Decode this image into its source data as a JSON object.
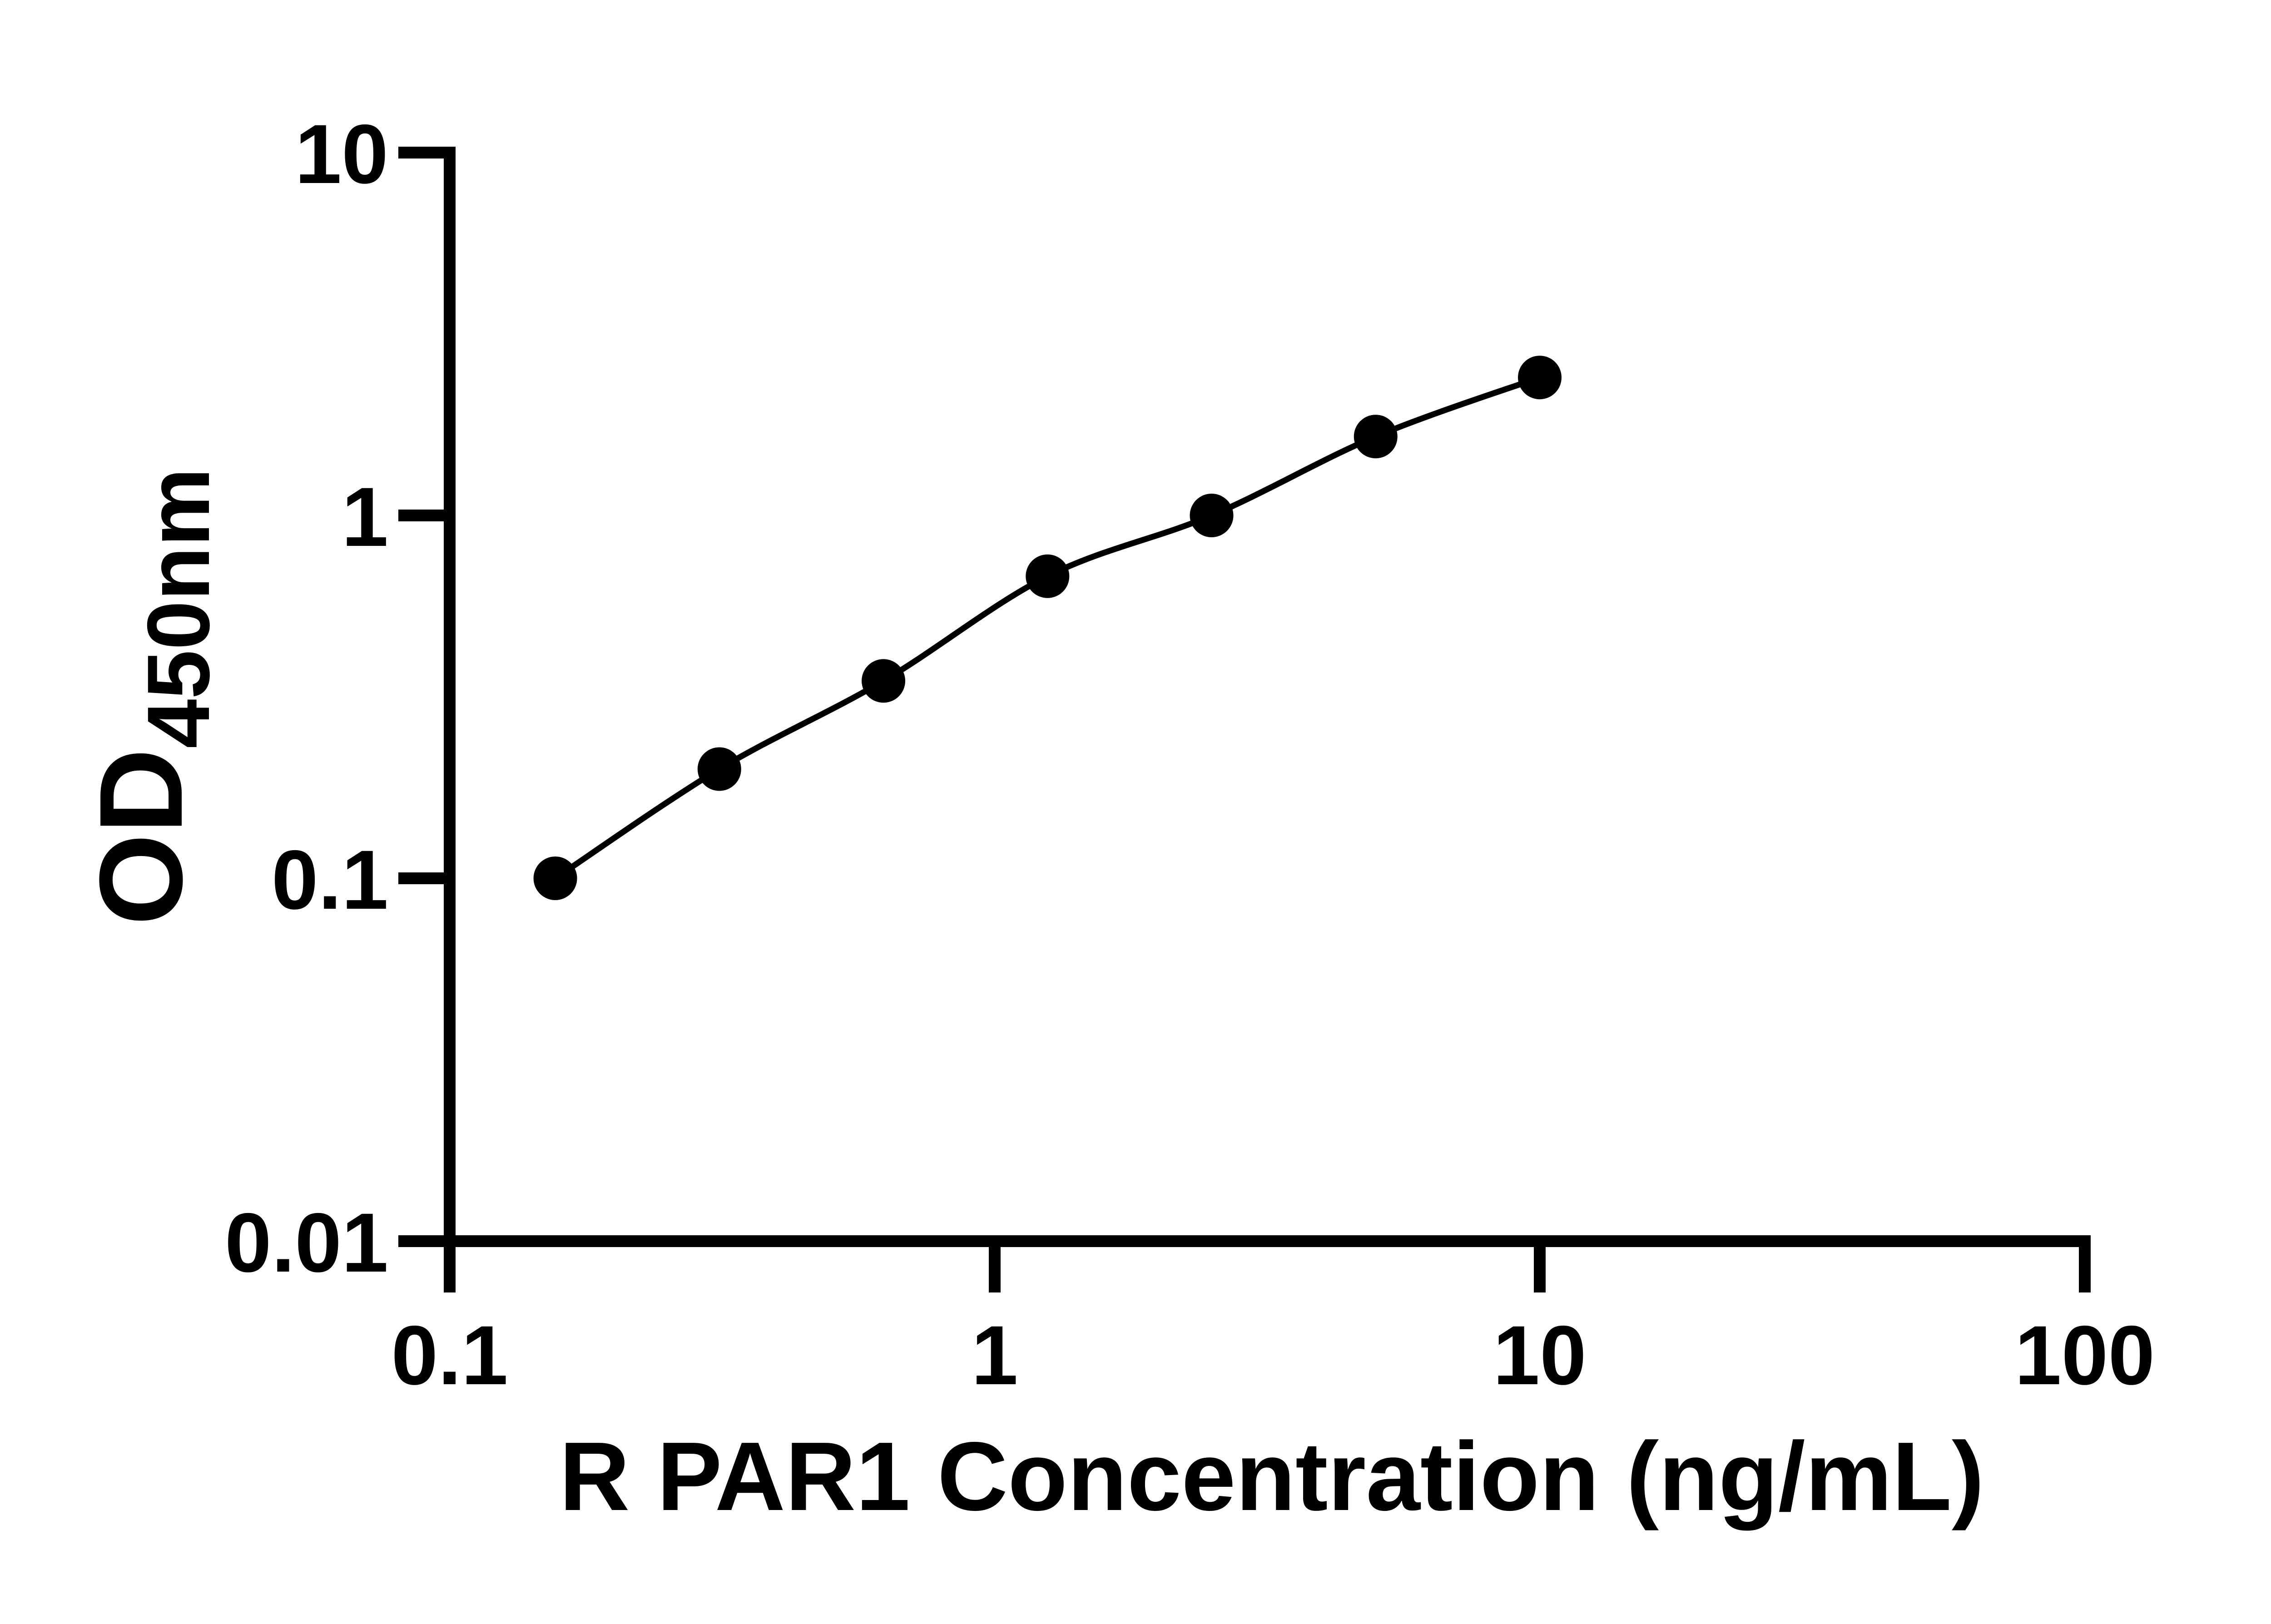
{
  "figure": {
    "background": "#ffffff",
    "ink": "#000000"
  },
  "chart_data": {
    "type": "scatter",
    "title": "",
    "xlabel": "R PAR1 Concentration (ng/mL)",
    "ylabel": "OD",
    "ylabel_subscript": "450nm",
    "x_scale": "log10",
    "y_scale": "log10",
    "xlim": [
      0.1,
      100
    ],
    "ylim": [
      0.01,
      10
    ],
    "x_ticks": [
      "0.1",
      "1",
      "10",
      "100"
    ],
    "y_ticks": [
      "10",
      "1",
      "0.1",
      "0.01"
    ],
    "grid": false,
    "legend": false,
    "marker": {
      "shape": "circle",
      "color": "#000000"
    },
    "line": {
      "color": "#000000",
      "smooth": true
    },
    "points": [
      {
        "x": 0.15625,
        "y": 0.1
      },
      {
        "x": 0.3125,
        "y": 0.2
      },
      {
        "x": 0.625,
        "y": 0.35
      },
      {
        "x": 1.25,
        "y": 0.68
      },
      {
        "x": 2.5,
        "y": 1.0
      },
      {
        "x": 5,
        "y": 1.65
      },
      {
        "x": 10,
        "y": 2.4
      }
    ]
  }
}
